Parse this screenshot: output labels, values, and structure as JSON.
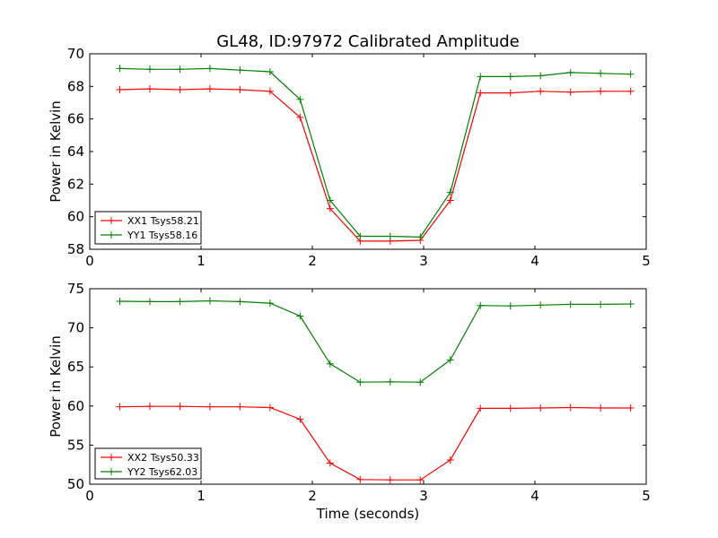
{
  "figure": {
    "title": "GL48, ID:97972 Calibrated Amplitude",
    "xlabel": "Time (seconds)"
  },
  "chart_data": [
    {
      "type": "line",
      "title": "GL48, ID:97972 Calibrated Amplitude",
      "xlabel": "",
      "ylabel": "Power in Kelvin",
      "xlim": [
        0,
        5
      ],
      "ylim": [
        58,
        70
      ],
      "xticks": [
        0,
        1,
        2,
        3,
        4,
        5
      ],
      "yticks": [
        58,
        60,
        62,
        64,
        66,
        68,
        70
      ],
      "grid": false,
      "legend_position": "lower-left",
      "x": [
        0.27,
        0.54,
        0.81,
        1.08,
        1.35,
        1.62,
        1.89,
        2.16,
        2.43,
        2.7,
        2.97,
        3.24,
        3.51,
        3.78,
        4.05,
        4.32,
        4.59,
        4.86
      ],
      "series": [
        {
          "name": "XX1 Tsys58.21",
          "color": "#ff0000",
          "marker": "plus",
          "values": [
            67.8,
            67.85,
            67.8,
            67.85,
            67.8,
            67.7,
            66.1,
            60.5,
            58.5,
            58.5,
            58.55,
            61.0,
            67.6,
            67.6,
            67.7,
            67.65,
            67.7,
            67.7
          ]
        },
        {
          "name": "YY1 Tsys58.16",
          "color": "#008000",
          "marker": "plus",
          "values": [
            69.1,
            69.05,
            69.05,
            69.1,
            69.0,
            68.9,
            67.2,
            61.0,
            58.8,
            58.8,
            58.75,
            61.5,
            68.6,
            68.6,
            68.65,
            68.85,
            68.8,
            68.75
          ]
        }
      ]
    },
    {
      "type": "line",
      "title": "",
      "xlabel": "Time (seconds)",
      "ylabel": "Power in Kelvin",
      "xlim": [
        0,
        5
      ],
      "ylim": [
        50,
        75
      ],
      "xticks": [
        0,
        1,
        2,
        3,
        4,
        5
      ],
      "yticks": [
        50,
        55,
        60,
        65,
        70,
        75
      ],
      "grid": false,
      "legend_position": "lower-left",
      "x": [
        0.27,
        0.54,
        0.81,
        1.08,
        1.35,
        1.62,
        1.89,
        2.16,
        2.43,
        2.7,
        2.97,
        3.24,
        3.51,
        3.78,
        4.05,
        4.32,
        4.59,
        4.86
      ],
      "series": [
        {
          "name": "XX2 Tsys50.33",
          "color": "#ff0000",
          "marker": "plus",
          "values": [
            59.9,
            59.95,
            59.95,
            59.9,
            59.9,
            59.8,
            58.3,
            52.7,
            50.6,
            50.55,
            50.55,
            53.1,
            59.7,
            59.7,
            59.75,
            59.8,
            59.75,
            59.75
          ]
        },
        {
          "name": "YY2 Tsys62.03",
          "color": "#008000",
          "marker": "plus",
          "values": [
            73.4,
            73.35,
            73.35,
            73.45,
            73.35,
            73.15,
            71.5,
            65.4,
            63.05,
            63.1,
            63.05,
            65.9,
            72.85,
            72.8,
            72.9,
            73.0,
            73.0,
            73.05
          ]
        }
      ]
    }
  ]
}
